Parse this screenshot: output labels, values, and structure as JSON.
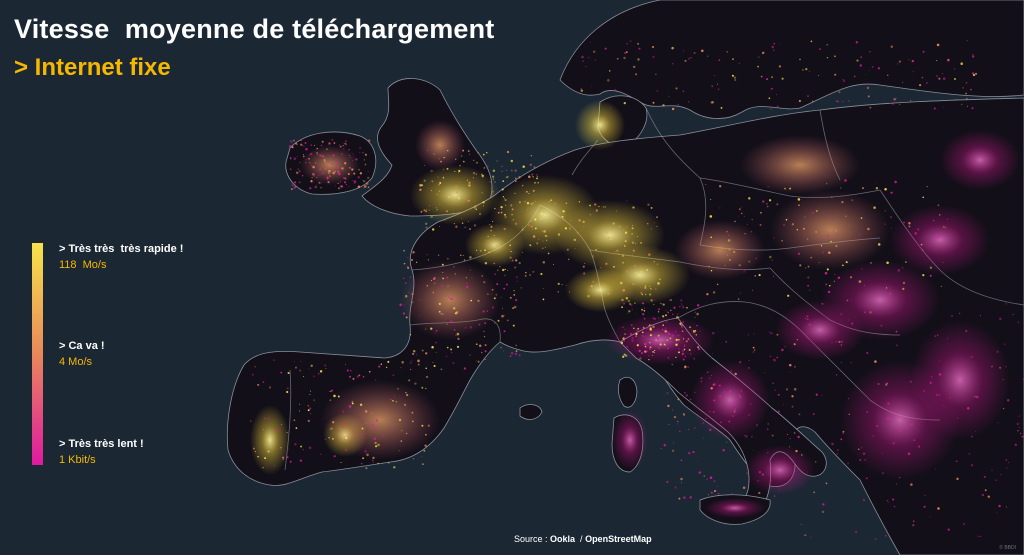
{
  "title": "Vitesse  moyenne de téléchargement",
  "subtitle": "> Internet fixe",
  "colors": {
    "ocean": "#1b2733",
    "land": "#120f18",
    "border": "#8a8f99",
    "fast": "#f7e34a",
    "mid": "#e8885a",
    "slow": "#e01aa0",
    "subtitle": "#f5b800",
    "legend_value": "#f5b800"
  },
  "legend": {
    "fast": {
      "label": "> Très très  très rapide !",
      "value": "118  Mo/s"
    },
    "mid": {
      "label": "> Ca va !",
      "value": "4 Mo/s"
    },
    "slow": {
      "label": "> Très très lent !",
      "value": "1 Kbit/s"
    }
  },
  "source": {
    "prefix": "Source : ",
    "provider": "Ookla",
    "separator": "  / ",
    "map": "OpenStreetMap"
  },
  "watermark": "© BBDI"
}
